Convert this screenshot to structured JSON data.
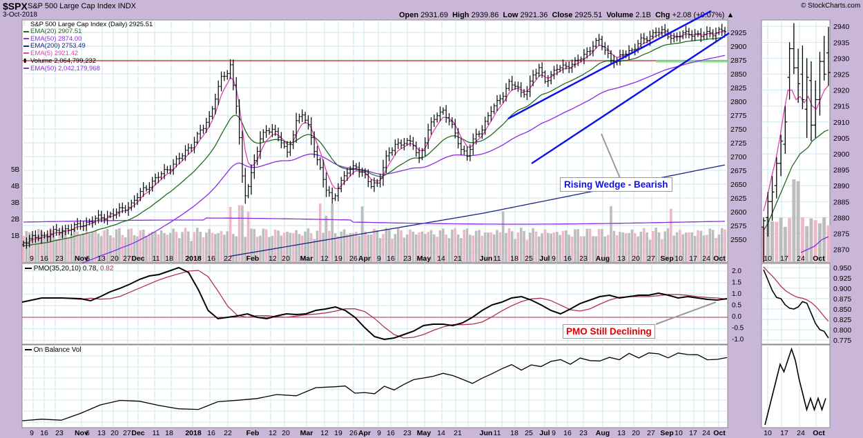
{
  "header": {
    "symbol": "$SPX",
    "name": "S&P 500 Large Cap Index",
    "exchange": "INDX",
    "date": "3-Oct-2018",
    "copyright": "© StockCharts.com",
    "open_label": "Open",
    "open": "2931.69",
    "high_label": "High",
    "high": "2939.86",
    "low_label": "Low",
    "low": "2921.36",
    "close_label": "Close",
    "close": "2925.51",
    "volume_label": "Volume",
    "volume": "2.1B",
    "chg_label": "Chg",
    "chg": "+2.08 (+0.07%)"
  },
  "legend": [
    {
      "text": "S&P 500 Large Cap Index (Daily) 2925.51",
      "color": "#000000",
      "marker": "ohlc"
    },
    {
      "text": "EMA(20) 2907.51",
      "color": "#1f6b1f",
      "marker": "line"
    },
    {
      "text": "EMA(50) 2874.00",
      "color": "#8a2be2",
      "marker": "line"
    },
    {
      "text": "EMA(200) 2753.49",
      "color": "#1a237e",
      "marker": "line"
    },
    {
      "text": "EMA(5) 2921.42",
      "color": "#e040b0",
      "marker": "line"
    },
    {
      "text": "Volume 2,064,799,232",
      "color": "#000000",
      "marker": "bar"
    },
    {
      "text": "EMA(50) 2,042,179,968",
      "color": "#8a2be2",
      "marker": "line"
    }
  ],
  "annotations": {
    "wedge": "Rising Wedge - Bearish",
    "pmo": "PMO Still Declining"
  },
  "colors": {
    "background": "#c9b6d8",
    "grid": "#b7dcea",
    "price": "#000000",
    "ema5": "#e040b0",
    "ema20": "#1f6b1f",
    "ema50": "#8a2be2",
    "ema200": "#1a237e",
    "volume_up": "#b7b7b7",
    "volume_down": "#e8b4c8",
    "horizontal_line": "#e07070",
    "support_line": "#88dd88",
    "trendline": "#1010ee",
    "annotation_text": "#1010ee",
    "pmo_text": "#dd0000",
    "pmo_line": "#000000",
    "pmo_signal": "#b03050"
  },
  "chart_data": [
    {
      "type": "line",
      "title": "S&P 500 Large Cap Index (Daily) 2925.51",
      "axis_ticks_right": [
        "2940",
        "2935",
        "2930",
        "2925",
        "2920",
        "2915",
        "2910",
        "2905",
        "2900",
        "2895",
        "2890",
        "2885",
        "2880",
        "2875",
        "2870"
      ],
      "left_axis_volume_labels": [
        "1B",
        "2B",
        "3B",
        "4B",
        "5B"
      ],
      "ylim": [
        2866,
        2942
      ],
      "x_labels": [
        "10",
        "17",
        "24",
        "Oct"
      ],
      "series": [
        {
          "name": "EMA(20) 2907.51",
          "values": [
            2876,
            2878,
            2881,
            2884,
            2887,
            2890,
            2893,
            2896,
            2898,
            2900,
            2901,
            2902,
            2904,
            2905,
            2906,
            2907,
            2907.5
          ]
        },
        {
          "name": "EMA(5) 2921.42",
          "values": [
            2882,
            2887,
            2893,
            2898,
            2905,
            2913,
            2920,
            2920,
            2917,
            2918,
            2916,
            2918,
            2915,
            2914,
            2917,
            2920,
            2921.4
          ]
        },
        {
          "name": "EMA(50) 2874.00",
          "values": [
            2869,
            2870,
            2871,
            2873,
            2874
          ]
        }
      ],
      "ohlc": [
        {
          "o": 2877,
          "h": 2880,
          "l": 2866,
          "c": 2879
        },
        {
          "o": 2880,
          "h": 2888,
          "l": 2874,
          "c": 2885
        },
        {
          "o": 2885,
          "h": 2893,
          "l": 2879,
          "c": 2888
        },
        {
          "o": 2890,
          "h": 2899,
          "l": 2886,
          "c": 2897
        },
        {
          "o": 2897,
          "h": 2906,
          "l": 2893,
          "c": 2904
        },
        {
          "o": 2903,
          "h": 2915,
          "l": 2900,
          "c": 2910
        },
        {
          "o": 2924,
          "h": 2935,
          "l": 2917,
          "c": 2933
        },
        {
          "o": 2933,
          "h": 2941,
          "l": 2925,
          "c": 2927
        },
        {
          "o": 2927,
          "h": 2933,
          "l": 2916,
          "c": 2922
        },
        {
          "o": 2925,
          "h": 2934,
          "l": 2914,
          "c": 2917
        },
        {
          "o": 2914,
          "h": 2930,
          "l": 2905,
          "c": 2924
        },
        {
          "o": 2923,
          "h": 2929,
          "l": 2904,
          "c": 2909
        },
        {
          "o": 2909,
          "h": 2923,
          "l": 2905,
          "c": 2917
        },
        {
          "o": 2917,
          "h": 2932,
          "l": 2912,
          "c": 2929
        },
        {
          "o": 2929,
          "h": 2937,
          "l": 2923,
          "c": 2925
        },
        {
          "o": 2931.69,
          "h": 2939.86,
          "l": 2921.36,
          "c": 2925.51
        }
      ]
    },
    {
      "type": "line",
      "title": "PMO(35,20,10) 0.78, 0.82",
      "axis_ticks_right": [
        "0.950",
        "0.925",
        "0.900",
        "0.875",
        "0.850",
        "0.825",
        "0.800",
        "0.775"
      ],
      "ylim": [
        0.765,
        0.96
      ],
      "series": [
        {
          "name": "PMO(35,20,10) 0.78",
          "values": [
            0.945,
            0.92,
            0.895,
            0.878,
            0.875,
            0.86,
            0.852,
            0.85,
            0.855,
            0.868,
            0.864,
            0.84,
            0.815,
            0.8,
            0.796,
            0.78
          ]
        },
        {
          "name": "signal 0.82",
          "values": [
            0.952,
            0.94,
            0.93,
            0.918,
            0.905,
            0.895,
            0.888,
            0.882,
            0.878,
            0.876,
            0.872,
            0.866,
            0.857,
            0.845,
            0.832,
            0.82
          ]
        }
      ]
    },
    {
      "type": "line",
      "title": "On Balance Vol",
      "series": [
        {
          "name": "On Balance Vol",
          "values": [
            0.0,
            0.2,
            0.4,
            0.6,
            0.8,
            0.7,
            0.85,
            1.0,
            0.85,
            0.6,
            0.4,
            0.2,
            0.35,
            0.2,
            0.35,
            0.2,
            0.35
          ]
        }
      ]
    }
  ]
}
